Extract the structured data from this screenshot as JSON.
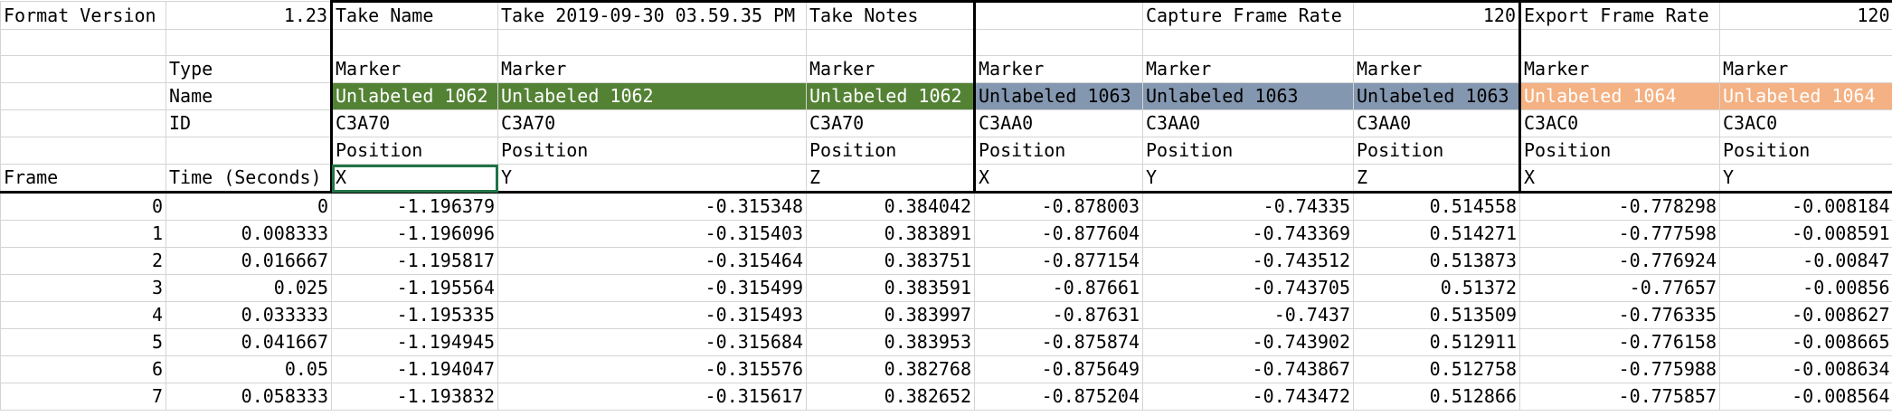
{
  "header": {
    "format_version_label": "Format Version",
    "format_version_value": "1.23",
    "take_name_label": "Take Name",
    "take_name_value": "Take 2019-09-30 03.59.35 PM",
    "take_notes_label": "Take Notes",
    "capture_frame_rate_label": "Capture Frame Rate",
    "capture_frame_rate_value": "120",
    "export_frame_rate_label": "Export Frame Rate",
    "export_frame_rate_value": "120"
  },
  "labels": {
    "type": "Type",
    "name": "Name",
    "id": "ID",
    "frame": "Frame",
    "time": "Time (Seconds)"
  },
  "columns": [
    {
      "type": "Marker",
      "name": "Unlabeled 1062",
      "id": "C3A70",
      "prop": "Position",
      "axis": "X",
      "color": "#548235",
      "text_color": "#ffffff"
    },
    {
      "type": "Marker",
      "name": "Unlabeled 1062",
      "id": "C3A70",
      "prop": "Position",
      "axis": "Y",
      "color": "#548235",
      "text_color": "#ffffff"
    },
    {
      "type": "Marker",
      "name": "Unlabeled 1062",
      "id": "C3A70",
      "prop": "Position",
      "axis": "Z",
      "color": "#548235",
      "text_color": "#ffffff"
    },
    {
      "type": "Marker",
      "name": "Unlabeled 1063",
      "id": "C3AA0",
      "prop": "Position",
      "axis": "X",
      "color": "#8497b0",
      "text_color": "#000000"
    },
    {
      "type": "Marker",
      "name": "Unlabeled 1063",
      "id": "C3AA0",
      "prop": "Position",
      "axis": "Y",
      "color": "#8497b0",
      "text_color": "#000000"
    },
    {
      "type": "Marker",
      "name": "Unlabeled 1063",
      "id": "C3AA0",
      "prop": "Position",
      "axis": "Z",
      "color": "#8497b0",
      "text_color": "#000000"
    },
    {
      "type": "Marker",
      "name": "Unlabeled 1064",
      "id": "C3AC0",
      "prop": "Position",
      "axis": "X",
      "color": "#f4b183",
      "text_color": "#ffffff"
    },
    {
      "type": "Marker",
      "name": "Unlabeled 1064",
      "id": "C3AC0",
      "prop": "Position",
      "axis": "Y",
      "color": "#f4b183",
      "text_color": "#ffffff"
    }
  ],
  "rows": [
    {
      "frame": "0",
      "time": "0",
      "v": [
        "-1.196379",
        "-0.315348",
        "0.384042",
        "-0.878003",
        "-0.74335",
        "0.514558",
        "-0.778298",
        "-0.008184"
      ]
    },
    {
      "frame": "1",
      "time": "0.008333",
      "v": [
        "-1.196096",
        "-0.315403",
        "0.383891",
        "-0.877604",
        "-0.743369",
        "0.514271",
        "-0.777598",
        "-0.008591"
      ]
    },
    {
      "frame": "2",
      "time": "0.016667",
      "v": [
        "-1.195817",
        "-0.315464",
        "0.383751",
        "-0.877154",
        "-0.743512",
        "0.513873",
        "-0.776924",
        "-0.00847"
      ]
    },
    {
      "frame": "3",
      "time": "0.025",
      "v": [
        "-1.195564",
        "-0.315499",
        "0.383591",
        "-0.87661",
        "-0.743705",
        "0.51372",
        "-0.77657",
        "-0.00856"
      ]
    },
    {
      "frame": "4",
      "time": "0.033333",
      "v": [
        "-1.195335",
        "-0.315493",
        "0.383997",
        "-0.87631",
        "-0.7437",
        "0.513509",
        "-0.776335",
        "-0.008627"
      ]
    },
    {
      "frame": "5",
      "time": "0.041667",
      "v": [
        "-1.194945",
        "-0.315684",
        "0.383953",
        "-0.875874",
        "-0.743902",
        "0.512911",
        "-0.776158",
        "-0.008665"
      ]
    },
    {
      "frame": "6",
      "time": "0.05",
      "v": [
        "-1.194047",
        "-0.315576",
        "0.382768",
        "-0.875649",
        "-0.743867",
        "0.512758",
        "-0.775988",
        "-0.008634"
      ]
    },
    {
      "frame": "7",
      "time": "0.058333",
      "v": [
        "-1.193832",
        "-0.315617",
        "0.382652",
        "-0.875204",
        "-0.743472",
        "0.512866",
        "-0.775857",
        "-0.008564"
      ]
    }
  ]
}
